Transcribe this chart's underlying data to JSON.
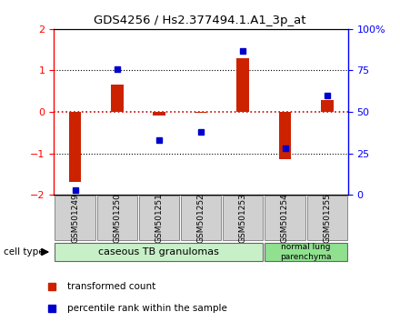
{
  "title": "GDS4256 / Hs2.377494.1.A1_3p_at",
  "samples": [
    "GSM501249",
    "GSM501250",
    "GSM501251",
    "GSM501252",
    "GSM501253",
    "GSM501254",
    "GSM501255"
  ],
  "transformed_counts": [
    -1.7,
    0.65,
    -0.08,
    -0.03,
    1.3,
    -1.15,
    0.28
  ],
  "percentile_ranks": [
    3,
    76,
    33,
    38,
    87,
    28,
    60
  ],
  "cell_type_groups": [
    {
      "label": "caseous TB granulomas",
      "n_samples": 5,
      "color": "#c8f0c8"
    },
    {
      "label": "normal lung\nparenchyma",
      "n_samples": 2,
      "color": "#90e090"
    }
  ],
  "ylim_left": [
    -2,
    2
  ],
  "ylim_right": [
    0,
    100
  ],
  "right_ticks": [
    0,
    25,
    50,
    75,
    100
  ],
  "right_tick_labels": [
    "0",
    "25",
    "50",
    "75",
    "100%"
  ],
  "left_ticks": [
    -2,
    -1,
    0,
    1,
    2
  ],
  "bar_color": "#cc2200",
  "dot_color": "#0000cc",
  "zero_line_color": "#cc0000",
  "hline_color": "#000000",
  "bg_color": "#ffffff",
  "label_box_color": "#d0d0d0",
  "label_box_edge": "#888888"
}
